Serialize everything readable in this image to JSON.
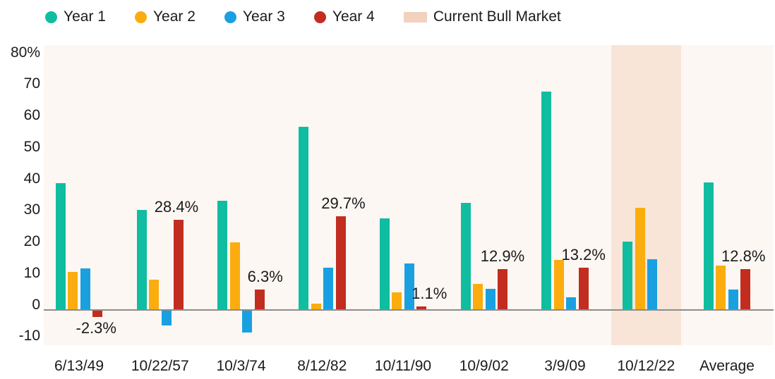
{
  "legend": {
    "position": "top-left",
    "items": [
      {
        "label": "Year 1",
        "color": "#10bda0",
        "shape": "circle"
      },
      {
        "label": "Year 2",
        "color": "#fbac0e",
        "shape": "circle"
      },
      {
        "label": "Year 3",
        "color": "#1aa0e1",
        "shape": "circle"
      },
      {
        "label": "Year 4",
        "color": "#c22d1f",
        "shape": "circle"
      },
      {
        "label": "Current Bull Market",
        "color": "#f2d2bf",
        "shape": "rect"
      }
    ]
  },
  "chart_data": {
    "type": "bar",
    "title": "",
    "xlabel": "",
    "ylabel": "",
    "categories": [
      "6/13/49",
      "10/22/57",
      "10/3/74",
      "8/12/82",
      "10/11/90",
      "10/9/02",
      "3/9/09",
      "10/12/22",
      "Average"
    ],
    "series": [
      {
        "name": "Year 1",
        "color": "#10bda0",
        "values": [
          40.2,
          31.6,
          34.6,
          58.1,
          28.9,
          33.8,
          69.1,
          21.5,
          40.3
        ]
      },
      {
        "name": "Year 2",
        "color": "#fbac0e",
        "values": [
          12.0,
          9.6,
          21.3,
          2.0,
          5.5,
          8.2,
          15.8,
          32.3,
          14.0
        ]
      },
      {
        "name": "Year 3",
        "color": "#1aa0e1",
        "values": [
          13.1,
          -5.0,
          -7.2,
          13.3,
          14.6,
          6.6,
          3.8,
          16.0,
          6.4
        ]
      },
      {
        "name": "Year 4",
        "color": "#c22d1f",
        "values": [
          -2.3,
          28.4,
          6.3,
          29.7,
          1.1,
          12.9,
          13.2,
          null,
          12.8
        ]
      }
    ],
    "annotations": [
      {
        "text": "-2.3%",
        "series": "Year 4",
        "category_index": 0,
        "position": "below",
        "dx": -2
      },
      {
        "text": "28.4%",
        "series": "Year 4",
        "category_index": 1,
        "position": "above",
        "dx": -3
      },
      {
        "text": "6.3%",
        "series": "Year 4",
        "category_index": 2,
        "position": "above",
        "dx": 8
      },
      {
        "text": "29.7%",
        "series": "Year 4",
        "category_index": 3,
        "position": "above",
        "dx": 4
      },
      {
        "text": "1.1%",
        "series": "Year 4",
        "category_index": 4,
        "position": "above",
        "dx": 11
      },
      {
        "text": "12.9%",
        "series": "Year 4",
        "category_index": 5,
        "position": "above",
        "dx": 0
      },
      {
        "text": "13.2%",
        "series": "Year 4",
        "category_index": 6,
        "position": "above",
        "dx": 0
      },
      {
        "text": "12.8%",
        "series": "Year 4",
        "category_index": 8,
        "position": "above",
        "dx": -3
      }
    ],
    "highlight_band": {
      "label": "Current Bull Market",
      "category_index": 7,
      "color": "#f8e5d7"
    },
    "y_axis": {
      "ylim": [
        -11,
        84
      ],
      "grid": false,
      "ticks": [
        {
          "value": 80,
          "label": "80%"
        },
        {
          "value": 70,
          "label": "70"
        },
        {
          "value": 60,
          "label": "60"
        },
        {
          "value": 50,
          "label": "50"
        },
        {
          "value": 40,
          "label": "40"
        },
        {
          "value": 30,
          "label": "30"
        },
        {
          "value": 20,
          "label": "20"
        },
        {
          "value": 10,
          "label": "10"
        },
        {
          "value": 0,
          "label": "0"
        },
        {
          "value": -10,
          "label": "-10"
        }
      ]
    },
    "colors": {
      "plot_background": "#fdf7f3",
      "axis_line": "#8c8c8c",
      "text": "#1b1b1b"
    }
  }
}
